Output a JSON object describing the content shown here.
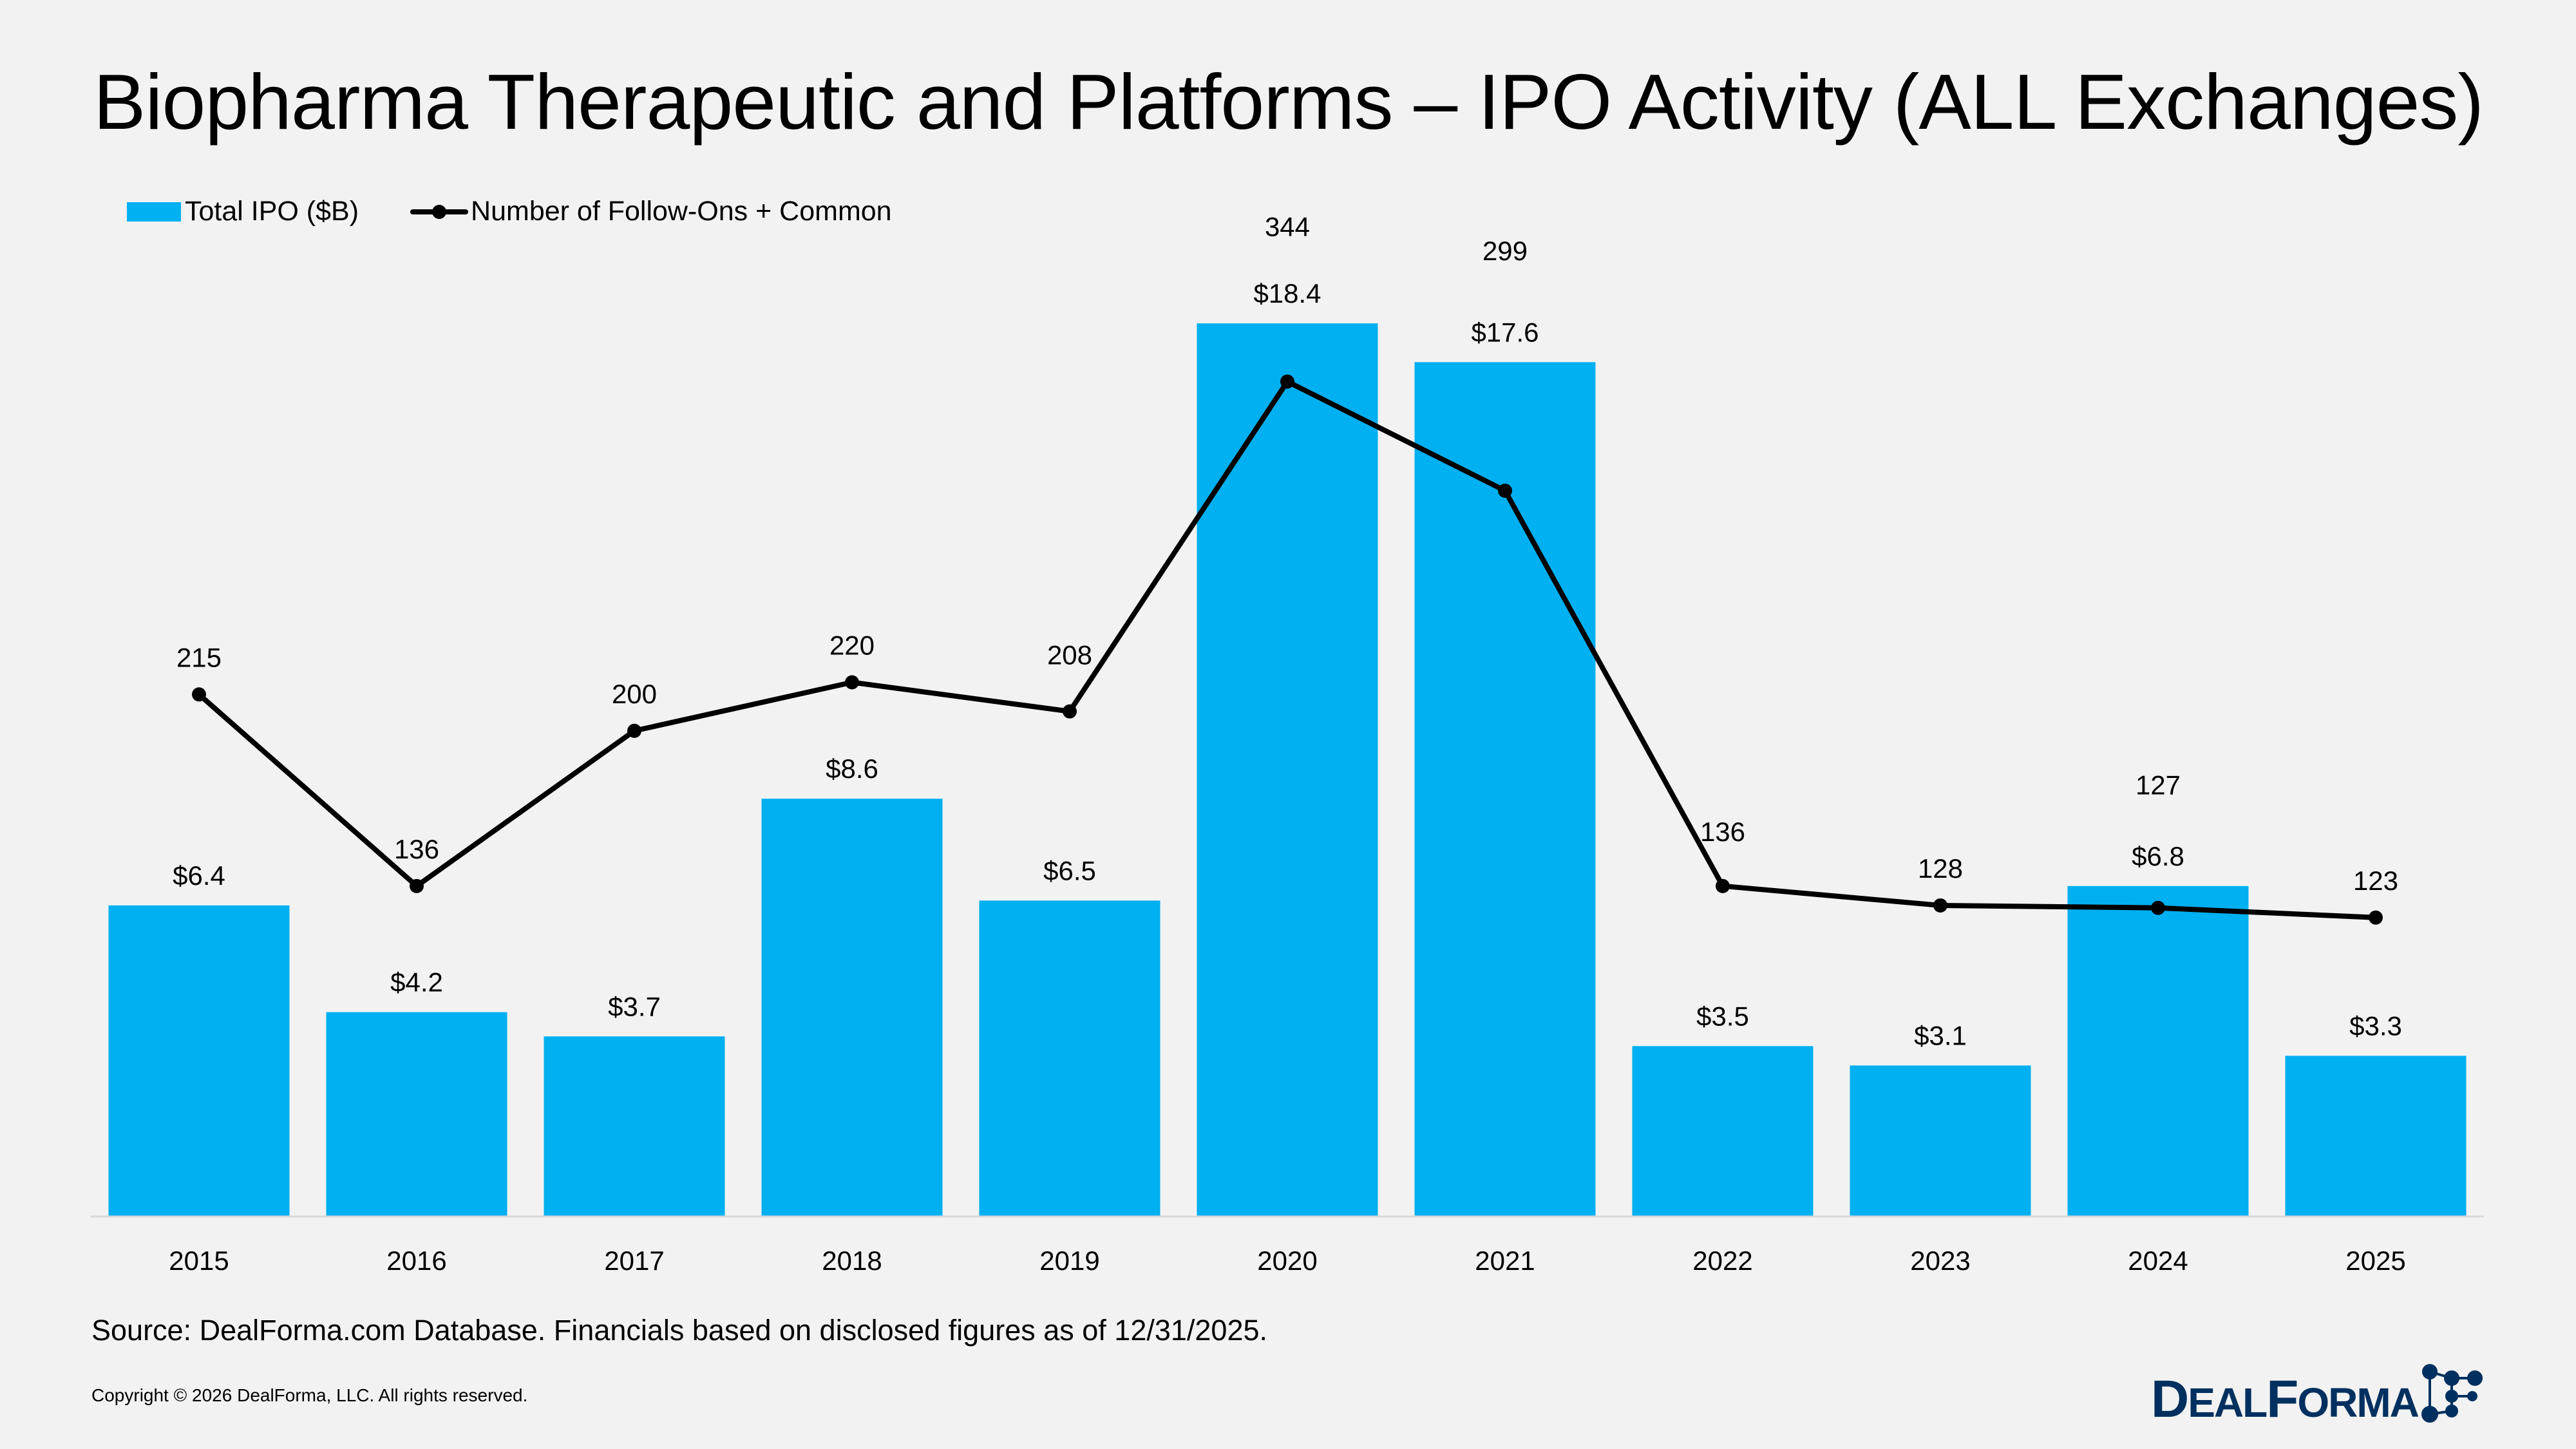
{
  "title": "Biopharma Therapeutic and Platforms – IPO Activity (ALL Exchanges)",
  "source": "Source: DealForma.com Database. Financials based on disclosed figures as of 12/31/2025.",
  "copyright": "Copyright © 2026 DealForma, LLC. All rights reserved.",
  "logo": {
    "text": "DEALFORMA",
    "color": "#00305f"
  },
  "chart_data": {
    "type": "bar+line",
    "categories": [
      "2015",
      "2016",
      "2017",
      "2018",
      "2019",
      "2020",
      "2021",
      "2022",
      "2023",
      "2024",
      "2025"
    ],
    "series": [
      {
        "name": "Total IPO ($B)",
        "type": "bar",
        "axis": "left",
        "color": "#00b0f0",
        "values": [
          6.4,
          4.2,
          3.7,
          8.6,
          6.5,
          18.4,
          17.6,
          3.5,
          3.1,
          6.8,
          3.3
        ],
        "labels": [
          "$6.4",
          "$4.2",
          "$3.7",
          "$8.6",
          "$6.5",
          "$18.4",
          "$17.6",
          "$3.5",
          "$3.1",
          "$6.8",
          "$3.3"
        ]
      },
      {
        "name": "Number of Follow-Ons + Common",
        "type": "line",
        "axis": "right",
        "color": "#000000",
        "values": [
          215,
          136,
          200,
          220,
          208,
          344,
          299,
          136,
          128,
          127,
          123
        ],
        "labels": [
          "215",
          "136",
          "200",
          "220",
          "208",
          "344",
          "299",
          "136",
          "128",
          "127",
          "123"
        ]
      }
    ],
    "ylim": [
      0,
      25
    ],
    "y2lim": [
      0,
      500
    ],
    "grid": false,
    "axes_visible": false,
    "legend": "top-left"
  }
}
